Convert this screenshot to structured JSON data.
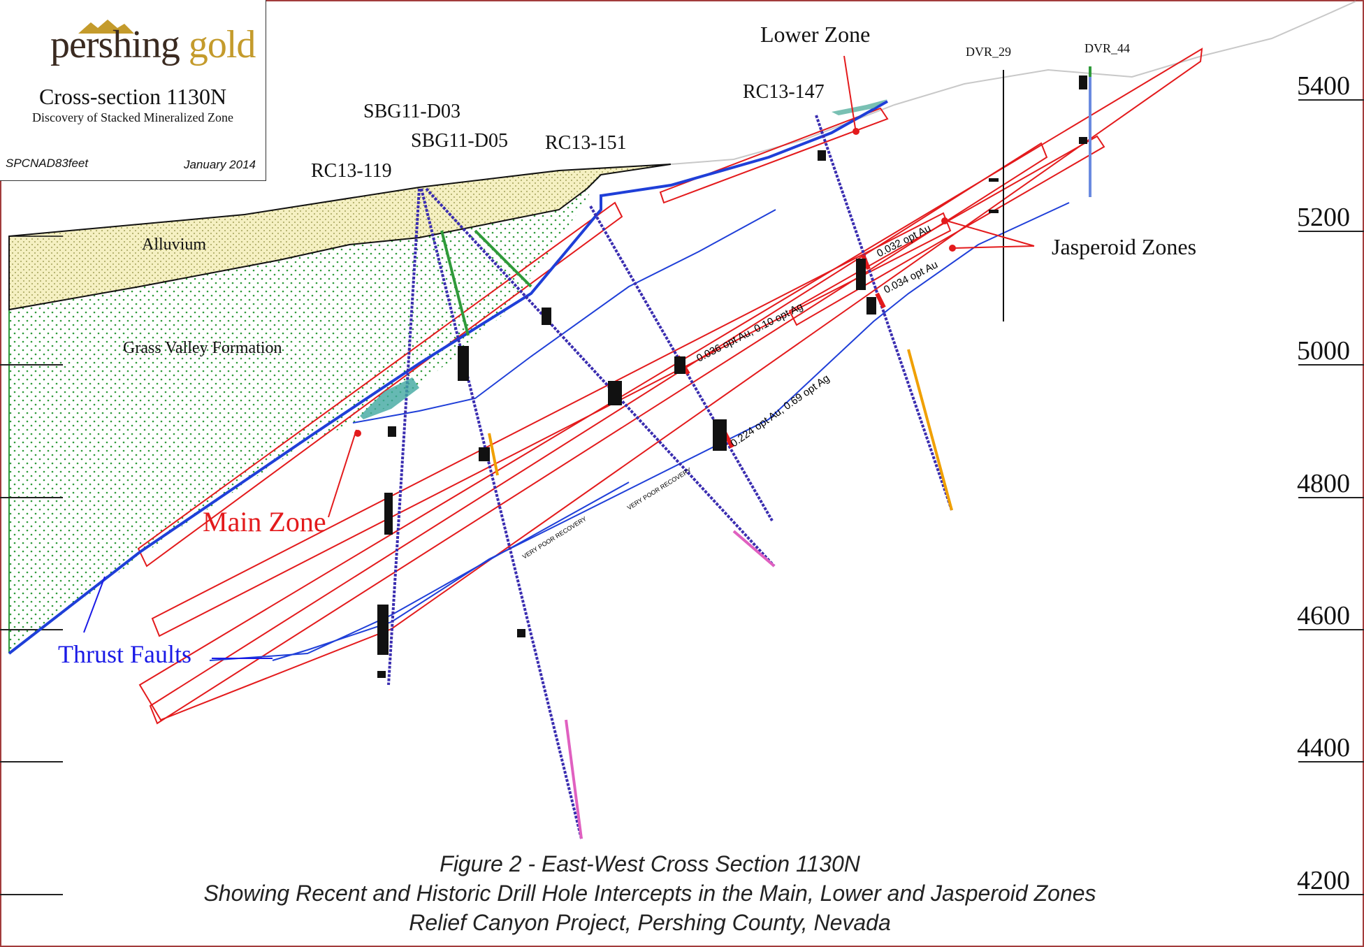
{
  "logo": {
    "word1": "pershing",
    "word2": "gold"
  },
  "section": {
    "title": "Cross-section 1130N",
    "subtitle": "Discovery of Stacked Mineralized Zone",
    "coord_system": "SPCNAD83feet",
    "date": "January 2014"
  },
  "drill_holes": {
    "rc13_119": "RC13-119",
    "sbg11_d03": "SBG11-D03",
    "sbg11_d05": "SBG11-D05",
    "rc13_151": "RC13-151",
    "rc13_147": "RC13-147",
    "dvr_29": "DVR_29",
    "dvr_44": "DVR_44"
  },
  "zones": {
    "lower": "Lower Zone",
    "main": "Main Zone",
    "jasperoid": "Jasperoid Zones",
    "thrust": "Thrust Faults"
  },
  "units": {
    "alluvium": "Alluvium",
    "grass_valley": "Grass Valley Formation"
  },
  "intercepts": {
    "a": "0.032 opt Au",
    "b": "0.034 opt Au",
    "c": "0.036 opt Au, 0.10 opt Ag",
    "d": "0.224 opt Au, 0.69 opt Ag",
    "vpr1": "VERY POOR RECOVERY",
    "vpr2": "VERY POOR RECOVERY"
  },
  "elevations": [
    "5400",
    "5200",
    "5000",
    "4800",
    "4600",
    "4400",
    "4200"
  ],
  "caption": {
    "line1": "Figure 2 - East-West Cross Section 1130N",
    "line2": "Showing Recent and Historic Drill Hole Intercepts in the Main, Lower and Jasperoid Zones",
    "line3": "Relief Canyon Project, Pershing County, Nevada"
  },
  "colors": {
    "border": "#a23b3b",
    "zone_outline": "#e31a1c",
    "thrust_fault": "#1f3fd8",
    "alluvium_fill": "#f4efb6",
    "formation_fill": "#e9f7e9",
    "formation_dots": "#2f9a3a",
    "drill_trace": "#3a2db0",
    "label_red": "#e31a1c",
    "label_blue": "#1a1ae6"
  }
}
